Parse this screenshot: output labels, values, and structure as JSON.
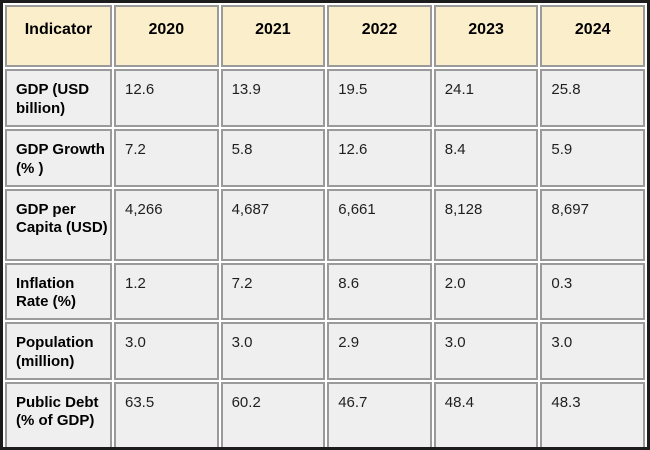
{
  "chart_data": {
    "type": "table",
    "columns": [
      "Indicator",
      "2020",
      "2021",
      "2022",
      "2023",
      "2024"
    ],
    "rows": [
      {
        "indicator": "GDP (USD billion)",
        "values": [
          "12.6",
          "13.9",
          "19.5",
          "24.1",
          "25.8"
        ]
      },
      {
        "indicator": "GDP Growth (% )",
        "values": [
          "7.2",
          "5.8",
          "12.6",
          "8.4",
          "5.9"
        ]
      },
      {
        "indicator": "GDP per Capita (USD)",
        "values": [
          "4,266",
          "4,687",
          "6,661",
          "8,128",
          "8,697"
        ]
      },
      {
        "indicator": "Inflation Rate (%)",
        "values": [
          "1.2",
          "7.2",
          "8.6",
          "2.0",
          "0.3"
        ]
      },
      {
        "indicator": "Population (million)",
        "values": [
          "3.0",
          "3.0",
          "2.9",
          "3.0",
          "3.0"
        ]
      },
      {
        "indicator": "Public Debt (% of GDP)",
        "values": [
          "63.5",
          "60.2",
          "46.7",
          "48.4",
          "48.3"
        ]
      }
    ]
  },
  "colors": {
    "header_bg": "#FBEECA",
    "row_bg": "#EFEFEF",
    "grid_border": "#9A9A9A",
    "outer_border": "#1C1C1C",
    "background": "#FFFFFF",
    "header_text": "#000000",
    "value_text": "#1F1F1F"
  }
}
